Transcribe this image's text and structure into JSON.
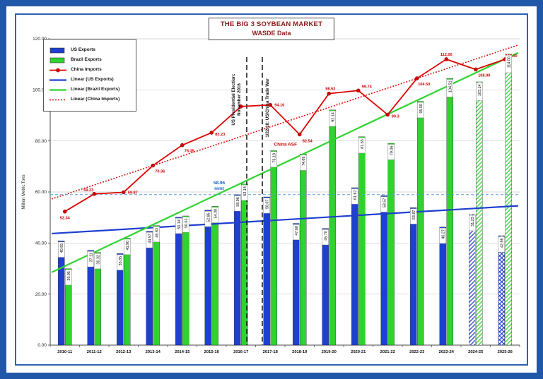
{
  "window": {
    "frame_color": "#2157a8",
    "panel_border_color": "#2c62b4",
    "background": "#ffffff"
  },
  "title": {
    "line1": "THE BIG 3 SOYBEAN MARKET",
    "line2": "WASDE Data",
    "color": "#8b1a1a"
  },
  "y_axis": {
    "label": "Million Metric Tons",
    "tick_values": [
      0,
      20,
      40,
      60,
      80,
      100,
      120
    ],
    "tick_labels": [
      "0.00",
      "20.00",
      "40.00",
      "60.00",
      "80.00",
      "100.00",
      "120.00"
    ]
  },
  "legend": {
    "items": [
      {
        "label": "US Exports",
        "swatch": "bar-blue"
      },
      {
        "label": "Brazil Exports",
        "swatch": "bar-green"
      },
      {
        "label": "China Imports",
        "swatch": "line-red-marker"
      },
      {
        "label": "Linear (US Exports)",
        "swatch": "line-blue"
      },
      {
        "label": "Linear (Brazil Exports)",
        "swatch": "line-green"
      },
      {
        "label": "Linear (China Imports)",
        "swatch": "line-red-dotted"
      }
    ]
  },
  "annotations": {
    "election_line1": "US Presidential Election:",
    "election_line2": "November 2016",
    "trade_war": "1/22/18: US/China Trade War",
    "china_asf": "China ASF",
    "mmt_line1": "58.96",
    "mmt_line2": "mmt",
    "mmt_line_value": 58.96
  },
  "chart_data": {
    "type": "bar",
    "title": "THE BIG 3 SOYBEAN MARKET — WASDE Data",
    "ylabel": "Million Metric Tons",
    "ylim": [
      0,
      120
    ],
    "grid": true,
    "legend_position": "top-left",
    "categories": [
      "2010-11",
      "2011-12",
      "2012-13",
      "2013-14",
      "2014-15",
      "2015-16",
      "2016-17",
      "2017-18",
      "2018-19",
      "2019-20",
      "2020-21",
      "2021-22",
      "2022-23",
      "2023-24",
      "2024-25",
      "2025-26"
    ],
    "series": [
      {
        "name": "US Exports",
        "type": "bar",
        "color": "#1f3fd0",
        "values": [
          40.85,
          37.11,
          35.85,
          44.57,
          50.14,
          52.86,
          58.96,
          58.07,
          47.68,
          45.7,
          61.67,
          58.57,
          53.87,
          46.27,
          51.23,
          42.86
        ],
        "forecast_indices": [
          14,
          15
        ]
      },
      {
        "name": "Brazil Exports",
        "type": "bar",
        "color": "#2fd32f",
        "values": [
          29.95,
          36.32,
          41.9,
          46.83,
          50.61,
          54.38,
          63.14,
          76.18,
          74.89,
          92.14,
          81.65,
          79.06,
          95.5,
          104.51,
          103.14,
          114.0
        ],
        "forecast_indices": [
          14,
          15
        ]
      },
      {
        "name": "China Imports",
        "type": "line",
        "color": "#dd0000",
        "values": [
          52.34,
          59.23,
          59.87,
          70.36,
          78.35,
          83.23,
          93.5,
          94.1,
          82.54,
          98.53,
          99.74,
          90.3,
          104.5,
          112.0,
          108.0,
          112.0
        ]
      }
    ],
    "labels": {
      "us": [
        "40.85",
        "37.11",
        "35.85",
        "44.57",
        "50.14",
        "52.86",
        "58.96",
        "58.07",
        "47.68",
        "45.70",
        "61.67",
        "58.57",
        "53.87",
        "46.27",
        "51.23",
        "42.86"
      ],
      "brazil": [
        "29.95",
        "36.32",
        "41.90",
        "46.83",
        "50.61",
        "54.38",
        "63.14",
        "76.18",
        "74.89",
        "92.14",
        "81.65",
        "79.06",
        "95.50",
        "104.51",
        "103.14",
        "114.00"
      ],
      "china": [
        "52.34",
        "59.23",
        "59.87",
        "70.36",
        "78.35",
        "83.23",
        "",
        "94.10",
        "82.54",
        "98.53",
        "99.74",
        "90.3",
        "104.50",
        "112.00",
        "108.00",
        "112.00"
      ]
    },
    "trendlines": [
      {
        "name": "Linear (US Exports)",
        "series": "US Exports",
        "style": "solid"
      },
      {
        "name": "Linear (Brazil Exports)",
        "series": "Brazil Exports",
        "style": "solid"
      },
      {
        "name": "Linear (China Imports)",
        "series": "China Imports",
        "style": "dotted"
      }
    ]
  }
}
